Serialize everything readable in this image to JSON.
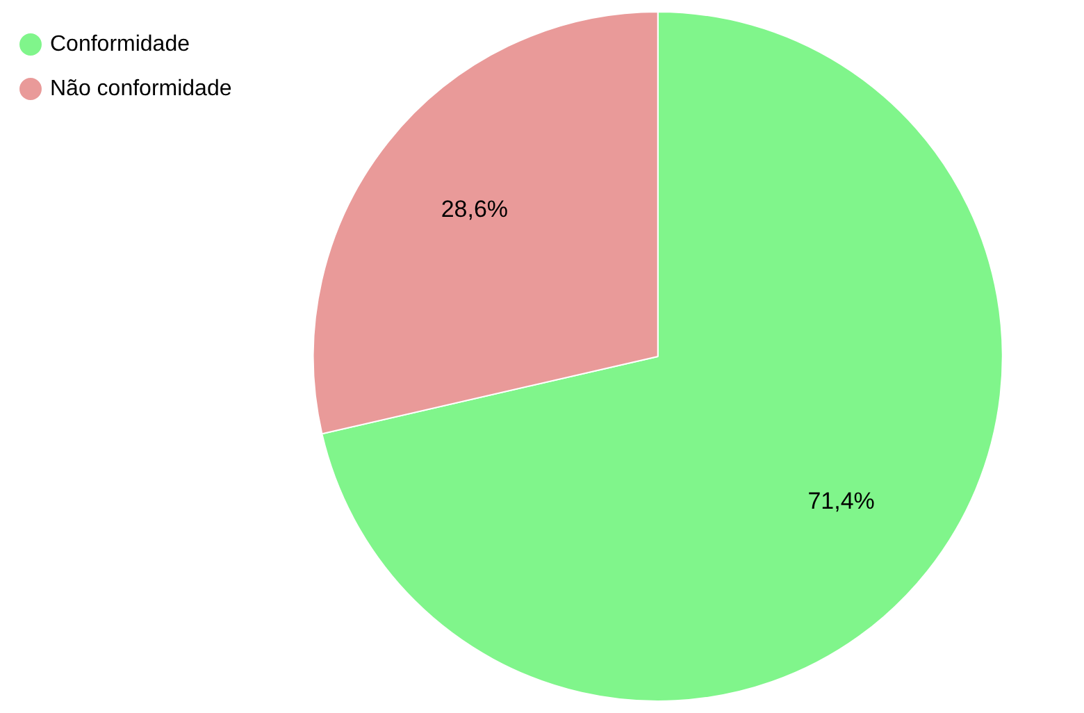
{
  "chart_data": {
    "type": "pie",
    "categories": [
      "Conformidade",
      "Não conformidade"
    ],
    "values": [
      71.4,
      28.6
    ],
    "colors": [
      "#80f58b",
      "#e99a99"
    ],
    "value_labels": [
      "71,4%",
      "28,6%"
    ],
    "legend": "top left"
  }
}
